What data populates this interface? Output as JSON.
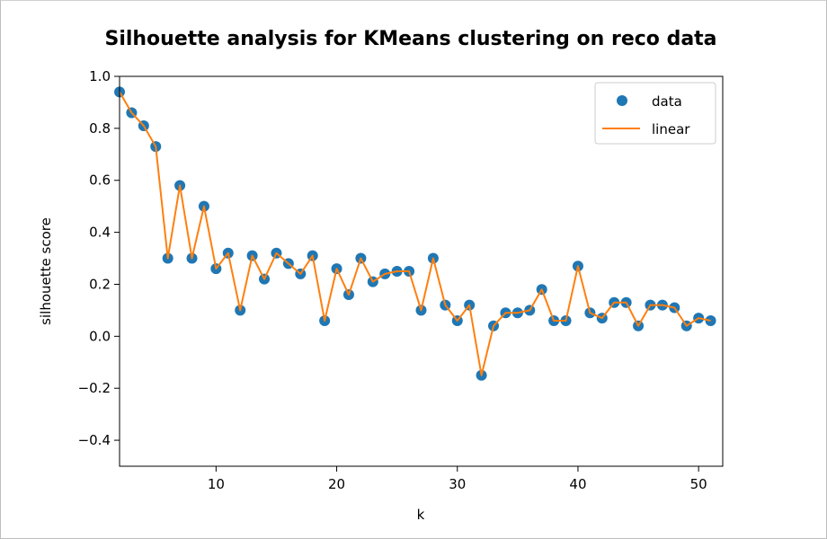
{
  "chart_data": {
    "type": "scatter",
    "title": "Silhouette analysis for KMeans clustering on reco data",
    "xlabel": "k",
    "ylabel": "silhouette score",
    "xlim": [
      2,
      52
    ],
    "ylim": [
      -0.5,
      1.0
    ],
    "xticks": [
      10,
      20,
      30,
      40,
      50
    ],
    "yticks": [
      -0.4,
      -0.2,
      0.0,
      0.2,
      0.4,
      0.6,
      0.8,
      1.0
    ],
    "ytick_labels": [
      "−0.4",
      "−0.2",
      "0.0",
      "0.2",
      "0.4",
      "0.6",
      "0.8",
      "1.0"
    ],
    "xtick_labels": [
      "10",
      "20",
      "30",
      "40",
      "50"
    ],
    "grid": false,
    "legend_position": "top-right",
    "colors": {
      "data": "#1f77b4",
      "linear": "#ff7f0e"
    },
    "series": [
      {
        "name": "data",
        "kind": "scatter"
      },
      {
        "name": "linear",
        "kind": "line"
      }
    ],
    "x": [
      2,
      3,
      4,
      5,
      6,
      7,
      8,
      9,
      10,
      11,
      12,
      13,
      14,
      15,
      16,
      17,
      18,
      19,
      20,
      21,
      22,
      23,
      24,
      25,
      26,
      27,
      28,
      29,
      30,
      31,
      32,
      33,
      34,
      35,
      36,
      37,
      38,
      39,
      40,
      41,
      42,
      43,
      44,
      45,
      46,
      47,
      48,
      49,
      50,
      51
    ],
    "y": [
      0.94,
      0.86,
      0.81,
      0.73,
      0.3,
      0.58,
      0.3,
      0.5,
      0.26,
      0.32,
      0.1,
      0.31,
      0.22,
      0.32,
      0.28,
      0.24,
      0.31,
      0.06,
      0.26,
      0.16,
      0.3,
      0.21,
      0.24,
      0.25,
      0.25,
      0.1,
      0.3,
      0.12,
      0.06,
      0.12,
      -0.15,
      0.04,
      0.09,
      0.09,
      0.1,
      0.18,
      0.06,
      0.06,
      0.27,
      0.09,
      0.07,
      0.13,
      0.13,
      0.04,
      0.12,
      0.12,
      0.11,
      0.04,
      0.07,
      0.06
    ]
  }
}
